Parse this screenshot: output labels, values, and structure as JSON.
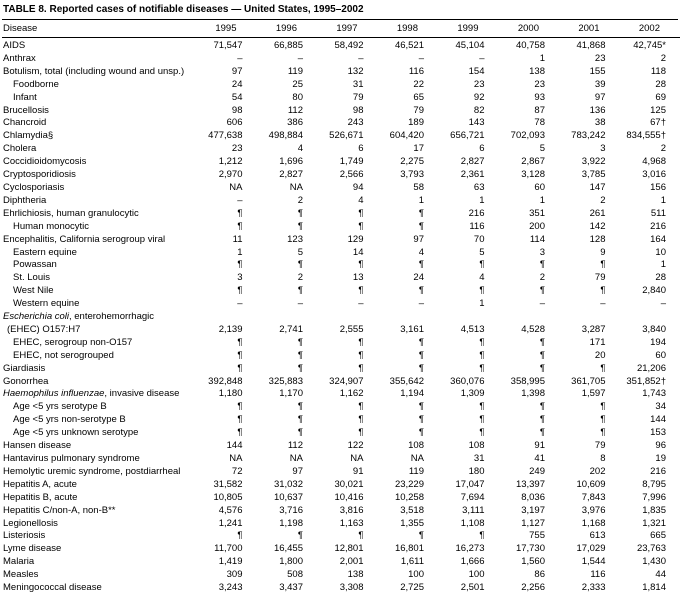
{
  "title": "TABLE 8. Reported cases of notifiable diseases — United States, 1995–2002",
  "table": {
    "columns": [
      "Disease",
      "1995",
      "1996",
      "1997",
      "1998",
      "1999",
      "2000",
      "2001",
      "2002"
    ],
    "rows": [
      {
        "label": "AIDS",
        "indent": 0,
        "values": [
          "71,547",
          "66,885",
          "58,492",
          "46,521",
          "45,104",
          "40,758",
          "41,868",
          "42,745*"
        ]
      },
      {
        "label": "Anthrax",
        "indent": 0,
        "values": [
          "–",
          "–",
          "–",
          "–",
          "–",
          "1",
          "23",
          "2"
        ]
      },
      {
        "label": "Botulism, total (including wound and unsp.)",
        "indent": 0,
        "values": [
          "97",
          "119",
          "132",
          "116",
          "154",
          "138",
          "155",
          "118"
        ]
      },
      {
        "label": "Foodborne",
        "indent": 1,
        "values": [
          "24",
          "25",
          "31",
          "22",
          "23",
          "23",
          "39",
          "28"
        ]
      },
      {
        "label": "Infant",
        "indent": 1,
        "values": [
          "54",
          "80",
          "79",
          "65",
          "92",
          "93",
          "97",
          "69"
        ]
      },
      {
        "label": "Brucellosis",
        "indent": 0,
        "values": [
          "98",
          "112",
          "98",
          "79",
          "82",
          "87",
          "136",
          "125"
        ]
      },
      {
        "label": "Chancroid",
        "indent": 0,
        "values": [
          "606",
          "386",
          "243",
          "189",
          "143",
          "78",
          "38",
          "67†"
        ]
      },
      {
        "label": "Chlamydia§",
        "indent": 0,
        "values": [
          "477,638",
          "498,884",
          "526,671",
          "604,420",
          "656,721",
          "702,093",
          "783,242",
          "834,555†"
        ]
      },
      {
        "label": "Cholera",
        "indent": 0,
        "values": [
          "23",
          "4",
          "6",
          "17",
          "6",
          "5",
          "3",
          "2"
        ]
      },
      {
        "label": "Coccidioidomycosis",
        "indent": 0,
        "values": [
          "1,212",
          "1,696",
          "1,749",
          "2,275",
          "2,827",
          "2,867",
          "3,922",
          "4,968"
        ]
      },
      {
        "label": "Cryptosporidiosis",
        "indent": 0,
        "values": [
          "2,970",
          "2,827",
          "2,566",
          "3,793",
          "2,361",
          "3,128",
          "3,785",
          "3,016"
        ]
      },
      {
        "label": "Cyclosporiasis",
        "indent": 0,
        "values": [
          "NA",
          "NA",
          "94",
          "58",
          "63",
          "60",
          "147",
          "156"
        ]
      },
      {
        "label": "Diphtheria",
        "indent": 0,
        "values": [
          "–",
          "2",
          "4",
          "1",
          "1",
          "1",
          "2",
          "1"
        ]
      },
      {
        "label": "Ehrlichiosis, human granulocytic",
        "indent": 0,
        "values": [
          "¶",
          "¶",
          "¶",
          "¶",
          "216",
          "351",
          "261",
          "511"
        ]
      },
      {
        "label": "Human monocytic",
        "indent": 1,
        "values": [
          "¶",
          "¶",
          "¶",
          "¶",
          "116",
          "200",
          "142",
          "216"
        ]
      },
      {
        "label": "Encephalitis, California serogroup viral",
        "indent": 0,
        "values": [
          "11",
          "123",
          "129",
          "97",
          "70",
          "114",
          "128",
          "164"
        ]
      },
      {
        "label": "Eastern equine",
        "indent": 1,
        "values": [
          "1",
          "5",
          "14",
          "4",
          "5",
          "3",
          "9",
          "10"
        ]
      },
      {
        "label": "Powassan",
        "indent": 1,
        "values": [
          "¶",
          "¶",
          "¶",
          "¶",
          "¶",
          "¶",
          "¶",
          "1"
        ]
      },
      {
        "label": "St. Louis",
        "indent": 1,
        "values": [
          "3",
          "2",
          "13",
          "24",
          "4",
          "2",
          "79",
          "28"
        ]
      },
      {
        "label": "West Nile",
        "indent": 1,
        "values": [
          "¶",
          "¶",
          "¶",
          "¶",
          "¶",
          "¶",
          "¶",
          "2,840"
        ]
      },
      {
        "label": "Western equine",
        "indent": 1,
        "values": [
          "–",
          "–",
          "–",
          "–",
          "1",
          "–",
          "–",
          "–"
        ]
      },
      {
        "label_italic": "Escherichia coli",
        "label": ", enterohemorrhagic",
        "label2": "(EHEC) O157:H7",
        "indent": 0,
        "values": [
          "2,139",
          "2,741",
          "2,555",
          "3,161",
          "4,513",
          "4,528",
          "3,287",
          "3,840"
        ]
      },
      {
        "label": "EHEC, serogroup non-O157",
        "indent": 1,
        "values": [
          "¶",
          "¶",
          "¶",
          "¶",
          "¶",
          "¶",
          "171",
          "194"
        ]
      },
      {
        "label": "EHEC, not serogrouped",
        "indent": 1,
        "values": [
          "¶",
          "¶",
          "¶",
          "¶",
          "¶",
          "¶",
          "20",
          "60"
        ]
      },
      {
        "label": "Giardiasis",
        "indent": 0,
        "values": [
          "¶",
          "¶",
          "¶",
          "¶",
          "¶",
          "¶",
          "¶",
          "21,206"
        ]
      },
      {
        "label": "Gonorrhea",
        "indent": 0,
        "values": [
          "392,848",
          "325,883",
          "324,907",
          "355,642",
          "360,076",
          "358,995",
          "361,705",
          "351,852†"
        ]
      },
      {
        "label_italic": "Haemophilus influenzae",
        "label": ", invasive disease",
        "indent": 0,
        "values": [
          "1,180",
          "1,170",
          "1,162",
          "1,194",
          "1,309",
          "1,398",
          "1,597",
          "1,743"
        ]
      },
      {
        "label": "Age <5 yrs serotype B",
        "indent": 1,
        "values": [
          "¶",
          "¶",
          "¶",
          "¶",
          "¶",
          "¶",
          "¶",
          "34"
        ]
      },
      {
        "label": "Age <5 yrs non-serotype B",
        "indent": 1,
        "values": [
          "¶",
          "¶",
          "¶",
          "¶",
          "¶",
          "¶",
          "¶",
          "144"
        ]
      },
      {
        "label": "Age <5 yrs unknown serotype",
        "indent": 1,
        "values": [
          "¶",
          "¶",
          "¶",
          "¶",
          "¶",
          "¶",
          "¶",
          "153"
        ]
      },
      {
        "label": "Hansen disease",
        "indent": 0,
        "values": [
          "144",
          "112",
          "122",
          "108",
          "108",
          "91",
          "79",
          "96"
        ]
      },
      {
        "label": "Hantavirus pulmonary syndrome",
        "indent": 0,
        "values": [
          "NA",
          "NA",
          "NA",
          "NA",
          "31",
          "41",
          "8",
          "19"
        ]
      },
      {
        "label": "Hemolytic uremic syndrome, postdiarrheal",
        "indent": 0,
        "values": [
          "72",
          "97",
          "91",
          "119",
          "180",
          "249",
          "202",
          "216"
        ]
      },
      {
        "label": "Hepatitis A, acute",
        "indent": 0,
        "values": [
          "31,582",
          "31,032",
          "30,021",
          "23,229",
          "17,047",
          "13,397",
          "10,609",
          "8,795"
        ]
      },
      {
        "label": "Hepatitis B, acute",
        "indent": 0,
        "values": [
          "10,805",
          "10,637",
          "10,416",
          "10,258",
          "7,694",
          "8,036",
          "7,843",
          "7,996"
        ]
      },
      {
        "label": "Hepatitis C/non-A, non-B**",
        "indent": 0,
        "values": [
          "4,576",
          "3,716",
          "3,816",
          "3,518",
          "3,111",
          "3,197",
          "3,976",
          "1,835"
        ]
      },
      {
        "label": "Legionellosis",
        "indent": 0,
        "values": [
          "1,241",
          "1,198",
          "1,163",
          "1,355",
          "1,108",
          "1,127",
          "1,168",
          "1,321"
        ]
      },
      {
        "label": "Listeriosis",
        "indent": 0,
        "values": [
          "¶",
          "¶",
          "¶",
          "¶",
          "¶",
          "755",
          "613",
          "665"
        ]
      },
      {
        "label": "Lyme disease",
        "indent": 0,
        "values": [
          "11,700",
          "16,455",
          "12,801",
          "16,801",
          "16,273",
          "17,730",
          "17,029",
          "23,763"
        ]
      },
      {
        "label": "Malaria",
        "indent": 0,
        "values": [
          "1,419",
          "1,800",
          "2,001",
          "1,611",
          "1,666",
          "1,560",
          "1,544",
          "1,430"
        ]
      },
      {
        "label": "Measles",
        "indent": 0,
        "values": [
          "309",
          "508",
          "138",
          "100",
          "100",
          "86",
          "116",
          "44"
        ]
      },
      {
        "label": "Meningococcal disease",
        "indent": 0,
        "values": [
          "3,243",
          "3,437",
          "3,308",
          "2,725",
          "2,501",
          "2,256",
          "2,333",
          "1,814"
        ]
      }
    ]
  }
}
